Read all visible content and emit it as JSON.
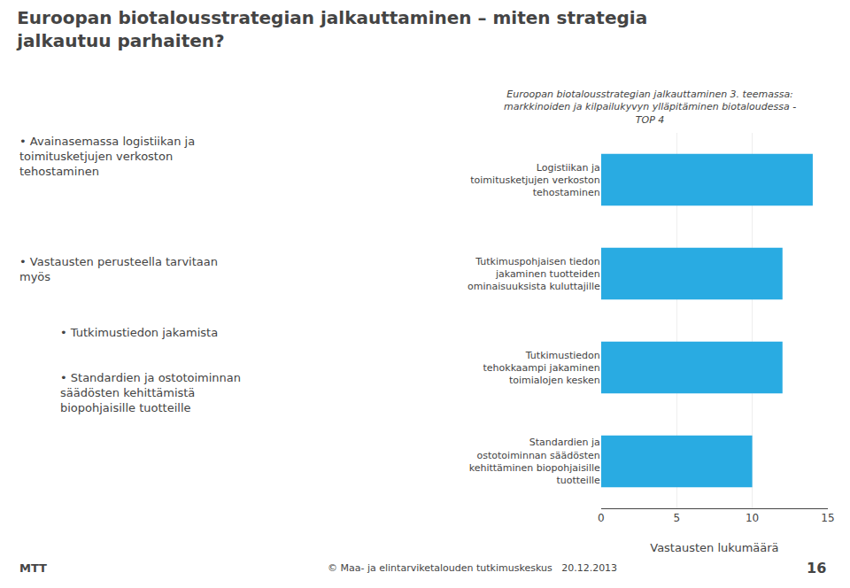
{
  "chart_data": {
    "type": "bar",
    "orientation": "horizontal",
    "title": "Euroopan biotalousstrategian jalkauttaminen – miten strategia\njalkautuu parhaiten?",
    "subtitle": "Euroopan biotalousstrategian jalkauttaminen 3. teemassa:\nmarkkinoiden ja kilpailukyvyn ylläpitäminen biotaloudessa -\nTOP 4",
    "categories": [
      "Logistiikan ja\ntoimitusketjujen verkoston\ntehostaminen",
      "Tutkimuspohjaisen tiedon\njakaminen tuotteiden\nominaisuuksista kuluttajille",
      "Tutkimustiedon\ntehokkaampi jakaminen\ntoimialojen kesken",
      "Standardien ja\nostotoiminnan säädösten\nkehittäminen biopohjaisille\ntuotteille"
    ],
    "values": [
      14,
      12,
      12,
      10
    ],
    "color": "#29abe2",
    "xlabel": "Vastausten lukumäärä",
    "xlim": [
      0,
      15
    ],
    "xticks": [
      0,
      5,
      10,
      15
    ],
    "grid": true,
    "annotations": [
      "• Avainasemassa logistiikan ja\ntoimitusketjujen verkoston\ntehostaminen",
      "• Vastausten perusteella tarvitaan\nmyös",
      "• Tutkimustiedon jakamista",
      "• Standardien ja ostotoiminnan\nsäädösten kehittämistä\nbiopohjaisille tuotteille",
      "MTT",
      "© Maa- ja elintarviketalouden tutkimuskeskus   20.12.2013",
      "16"
    ]
  }
}
